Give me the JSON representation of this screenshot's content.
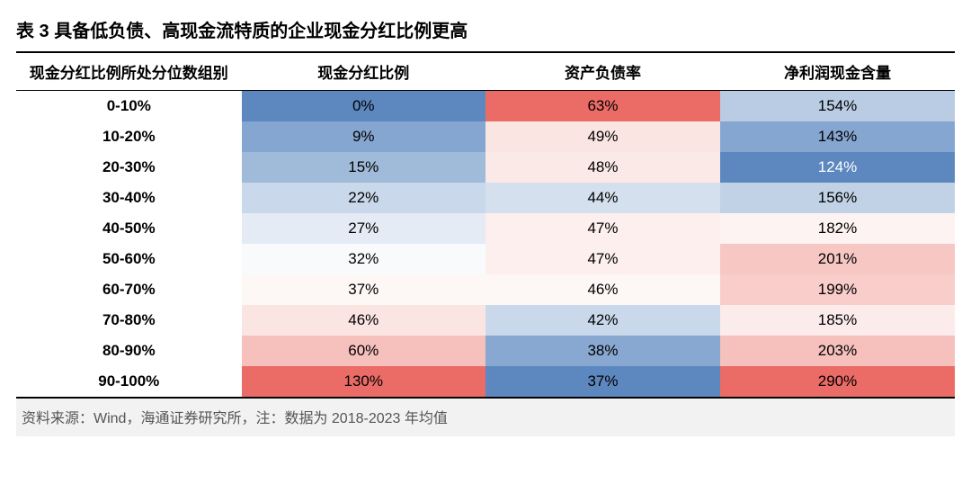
{
  "title": "表 3 具备低负债、高现金流特质的企业现金分红比例更高",
  "source": "资料来源：Wind，海通证券研究所，注：数据为 2018-2023 年均值",
  "table": {
    "type": "table",
    "columns": [
      "现金分红比例所处分位数组别",
      "现金分红比例",
      "资产负债率",
      "净利润现金含量"
    ],
    "rows": [
      {
        "label": "0-10%",
        "c1": {
          "v": "0%",
          "bg": "#5d87bf",
          "fg": "#000000"
        },
        "c2": {
          "v": "63%",
          "bg": "#eb6b66",
          "fg": "#000000"
        },
        "c3": {
          "v": "154%",
          "bg": "#b9cce3",
          "fg": "#000000"
        }
      },
      {
        "label": "10-20%",
        "c1": {
          "v": "9%",
          "bg": "#85a6d0",
          "fg": "#000000"
        },
        "c2": {
          "v": "49%",
          "bg": "#fbe5e3",
          "fg": "#000000"
        },
        "c3": {
          "v": "143%",
          "bg": "#85a6d0",
          "fg": "#000000"
        }
      },
      {
        "label": "20-30%",
        "c1": {
          "v": "15%",
          "bg": "#a0bad9",
          "fg": "#000000"
        },
        "c2": {
          "v": "48%",
          "bg": "#fbe9e7",
          "fg": "#000000"
        },
        "c3": {
          "v": "124%",
          "bg": "#5d87bf",
          "fg": "#ffffff"
        }
      },
      {
        "label": "30-40%",
        "c1": {
          "v": "22%",
          "bg": "#c9d8ea",
          "fg": "#000000"
        },
        "c2": {
          "v": "44%",
          "bg": "#d5e0ee",
          "fg": "#000000"
        },
        "c3": {
          "v": "156%",
          "bg": "#c1d2e6",
          "fg": "#000000"
        }
      },
      {
        "label": "40-50%",
        "c1": {
          "v": "27%",
          "bg": "#e4ebf4",
          "fg": "#000000"
        },
        "c2": {
          "v": "47%",
          "bg": "#fcefee",
          "fg": "#000000"
        },
        "c3": {
          "v": "182%",
          "bg": "#fcf3f2",
          "fg": "#000000"
        }
      },
      {
        "label": "50-60%",
        "c1": {
          "v": "32%",
          "bg": "#f8fafc",
          "fg": "#000000"
        },
        "c2": {
          "v": "47%",
          "bg": "#fcefee",
          "fg": "#000000"
        },
        "c3": {
          "v": "201%",
          "bg": "#f7c7c4",
          "fg": "#000000"
        }
      },
      {
        "label": "60-70%",
        "c1": {
          "v": "37%",
          "bg": "#fdf7f6",
          "fg": "#000000"
        },
        "c2": {
          "v": "46%",
          "bg": "#fdf7f6",
          "fg": "#000000"
        },
        "c3": {
          "v": "199%",
          "bg": "#f8cdca",
          "fg": "#000000"
        }
      },
      {
        "label": "70-80%",
        "c1": {
          "v": "46%",
          "bg": "#fbe5e3",
          "fg": "#000000"
        },
        "c2": {
          "v": "42%",
          "bg": "#c9d8ea",
          "fg": "#000000"
        },
        "c3": {
          "v": "185%",
          "bg": "#fbeceb",
          "fg": "#000000"
        }
      },
      {
        "label": "80-90%",
        "c1": {
          "v": "60%",
          "bg": "#f6c0bd",
          "fg": "#000000"
        },
        "c2": {
          "v": "38%",
          "bg": "#88a8d1",
          "fg": "#000000"
        },
        "c3": {
          "v": "203%",
          "bg": "#f6c0bd",
          "fg": "#000000"
        }
      },
      {
        "label": "90-100%",
        "c1": {
          "v": "130%",
          "bg": "#eb6b66",
          "fg": "#000000"
        },
        "c2": {
          "v": "37%",
          "bg": "#5d87bf",
          "fg": "#000000"
        },
        "c3": {
          "v": "290%",
          "bg": "#eb6b66",
          "fg": "#000000"
        }
      }
    ],
    "header_bg": "#ffffff",
    "border_color": "#000000",
    "font_size_header": 17,
    "font_size_cell": 17
  }
}
